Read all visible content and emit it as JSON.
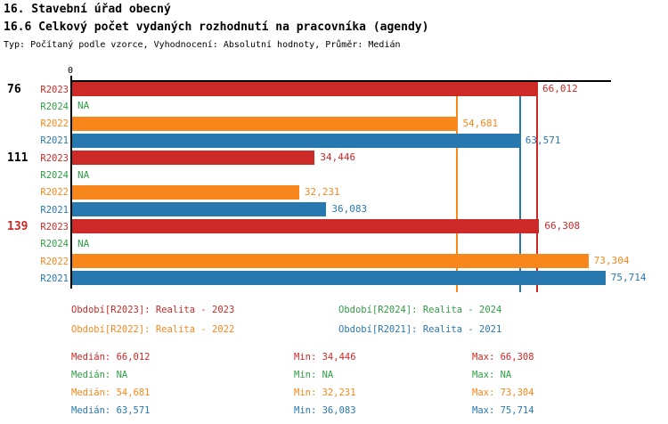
{
  "header": {
    "title": "16. Stavební úřad obecný",
    "subtitle": "16.6 Celkový počet vydaných rozhodnutí na pracovníka (agendy)",
    "meta": "Typ: Počítaný podle vzorce, Vyhodnocení: Absolutní hodnoty, Průměr: Medián"
  },
  "colors": {
    "r2023": "#CC2927",
    "r2024": "#2F9E44",
    "r2022": "#F8871B",
    "r2021": "#2878B0",
    "axis": "#000000"
  },
  "chart_data": {
    "type": "bar",
    "orientation": "horizontal",
    "title": "16. Stavební úřad obecný",
    "subtitle": "16.6 Celkový počet vydaných rozhodnutí na pracovníka (agendy)",
    "note": "Typ: Počítaný podle vzorce, Vyhodnocení: Absolutní hodnoty, Průměr: Medián",
    "x_axis": {
      "zero_label": "0",
      "xlim": [
        0,
        76.5
      ],
      "grid": false
    },
    "groups": [
      {
        "label": "76",
        "label_color": "#000000",
        "rows": [
          {
            "series": "R2023",
            "color_key": "r2023",
            "value": 66.012,
            "value_label": "66,012"
          },
          {
            "series": "R2024",
            "color_key": "r2024",
            "value": null,
            "value_label": "NA"
          },
          {
            "series": "R2022",
            "color_key": "r2022",
            "value": 54.681,
            "value_label": "54,681"
          },
          {
            "series": "R2021",
            "color_key": "r2021",
            "value": 63.571,
            "value_label": "63,571"
          }
        ]
      },
      {
        "label": "111",
        "label_color": "#000000",
        "rows": [
          {
            "series": "R2023",
            "color_key": "r2023",
            "value": 34.446,
            "value_label": "34,446"
          },
          {
            "series": "R2024",
            "color_key": "r2024",
            "value": null,
            "value_label": "NA"
          },
          {
            "series": "R2022",
            "color_key": "r2022",
            "value": 32.231,
            "value_label": "32,231"
          },
          {
            "series": "R2021",
            "color_key": "r2021",
            "value": 36.083,
            "value_label": "36,083"
          }
        ]
      },
      {
        "label": "139",
        "label_color": "#CC2927",
        "rows": [
          {
            "series": "R2023",
            "color_key": "r2023",
            "value": 66.308,
            "value_label": "66,308"
          },
          {
            "series": "R2024",
            "color_key": "r2024",
            "value": null,
            "value_label": "NA"
          },
          {
            "series": "R2022",
            "color_key": "r2022",
            "value": 73.304,
            "value_label": "73,304"
          },
          {
            "series": "R2021",
            "color_key": "r2021",
            "value": 75.714,
            "value_label": "75,714"
          }
        ]
      }
    ],
    "median_lines": [
      {
        "color_key": "r2022",
        "value": 54.681
      },
      {
        "color_key": "r2021",
        "value": 63.571
      },
      {
        "color_key": "r2023",
        "value": 66.012
      }
    ],
    "legend": [
      {
        "label": "Období[R2023]: Realita - 2023",
        "color_key": "r2023",
        "col": 0,
        "row": 0
      },
      {
        "label": "Období[R2022]: Realita - 2022",
        "color_key": "r2022",
        "col": 0,
        "row": 1
      },
      {
        "label": "Období[R2024]: Realita - 2024",
        "color_key": "r2024",
        "col": 1,
        "row": 0
      },
      {
        "label": "Období[R2021]: Realita - 2021",
        "color_key": "r2021",
        "col": 1,
        "row": 1
      }
    ],
    "stats": [
      {
        "color_key": "r2023",
        "median": "Medián: 66,012",
        "min": "Min: 34,446",
        "max": "Max: 66,308"
      },
      {
        "color_key": "r2024",
        "median": "Medián: NA",
        "min": "Min: NA",
        "max": "Max: NA"
      },
      {
        "color_key": "r2022",
        "median": "Medián: 54,681",
        "min": "Min: 32,231",
        "max": "Max: 73,304"
      },
      {
        "color_key": "r2021",
        "median": "Medián: 63,571",
        "min": "Min: 36,083",
        "max": "Max: 75,714"
      }
    ]
  }
}
